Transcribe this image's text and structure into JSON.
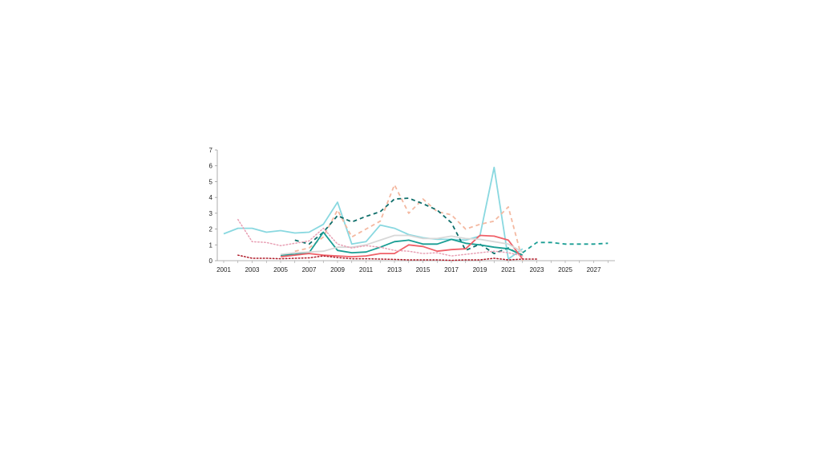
{
  "chart_data": {
    "type": "line",
    "title": "",
    "xlabel": "",
    "ylabel": "",
    "xlim": [
      2001,
      2028
    ],
    "ylim": [
      0,
      7
    ],
    "grid": false,
    "legend": "none",
    "x_ticks": [
      "2001",
      "2003",
      "2005",
      "2007",
      "2009",
      "2011",
      "2013",
      "2015",
      "2017",
      "2019",
      "2021",
      "2023",
      "2025",
      "2027"
    ],
    "y_ticks": [
      "0",
      "1",
      "2",
      "3",
      "4",
      "5",
      "6",
      "7"
    ],
    "series": [
      {
        "color": "#89d8e0",
        "style": "solid",
        "x": [
          2001,
          2002,
          2003,
          2004,
          2005,
          2006,
          2007,
          2008,
          2009,
          2010,
          2011,
          2012,
          2013,
          2014,
          2015,
          2016,
          2017,
          2018,
          2019,
          2020,
          2021,
          2022
        ],
        "y": [
          1.7,
          2.05,
          2.05,
          1.8,
          1.9,
          1.75,
          1.8,
          2.3,
          3.7,
          1.05,
          1.2,
          2.25,
          2.05,
          1.65,
          1.45,
          1.35,
          1.35,
          1.3,
          1.55,
          5.9,
          0.1,
          0.75
        ]
      },
      {
        "color": "#f4b8a0",
        "style": "dashed",
        "x": [
          2006,
          2007,
          2008,
          2009,
          2010,
          2011,
          2012,
          2013,
          2014,
          2015,
          2016,
          2017,
          2018,
          2019,
          2020,
          2021,
          2022
        ],
        "y": [
          0.6,
          0.8,
          1.5,
          3.2,
          1.5,
          2.0,
          2.5,
          4.8,
          3.0,
          3.9,
          3.1,
          2.9,
          2.0,
          2.3,
          2.5,
          3.4,
          0.0
        ]
      },
      {
        "color": "#0e6e6a",
        "style": "dashed",
        "x": [
          2006,
          2007,
          2008,
          2009,
          2010,
          2011,
          2012,
          2013,
          2014,
          2015,
          2016,
          2017,
          2018,
          2019,
          2020,
          2021,
          2022
        ],
        "y": [
          1.3,
          1.05,
          1.8,
          2.85,
          2.45,
          2.8,
          3.1,
          3.9,
          3.95,
          3.6,
          3.2,
          2.4,
          0.65,
          1.05,
          0.45,
          0.8,
          0.3
        ]
      },
      {
        "color": "#1a9e94",
        "style": "solid",
        "x": [
          2005,
          2006,
          2007,
          2008,
          2009,
          2010,
          2011,
          2012,
          2013,
          2014,
          2015,
          2016,
          2017,
          2018,
          2019,
          2020,
          2021,
          2022
        ],
        "y": [
          0.35,
          0.4,
          0.5,
          1.8,
          0.65,
          0.5,
          0.55,
          0.85,
          1.2,
          1.3,
          1.05,
          1.05,
          1.35,
          1.1,
          1.0,
          0.85,
          0.75,
          0.35
        ]
      },
      {
        "color": "#f06068",
        "style": "solid",
        "x": [
          2005,
          2006,
          2007,
          2008,
          2009,
          2010,
          2011,
          2012,
          2013,
          2014,
          2015,
          2016,
          2017,
          2018,
          2019,
          2020,
          2021,
          2022
        ],
        "y": [
          0.25,
          0.35,
          0.45,
          0.35,
          0.3,
          0.25,
          0.3,
          0.45,
          0.45,
          1.0,
          0.9,
          0.6,
          0.7,
          0.75,
          1.6,
          1.55,
          1.3,
          0.1
        ]
      },
      {
        "color": "#d8d8d8",
        "style": "solid",
        "x": [
          2005,
          2006,
          2007,
          2008,
          2009,
          2010,
          2011,
          2012,
          2013,
          2014,
          2015,
          2016,
          2017,
          2018,
          2019,
          2020,
          2021,
          2022
        ],
        "y": [
          0.4,
          0.5,
          0.55,
          0.6,
          0.85,
          0.85,
          1.0,
          1.3,
          1.6,
          1.6,
          1.4,
          1.4,
          1.55,
          1.4,
          1.35,
          1.2,
          1.05,
          0.55
        ]
      },
      {
        "color": "#e8a0b4",
        "style": "dotted",
        "x": [
          2002,
          2003,
          2004,
          2005,
          2006,
          2007,
          2008,
          2009,
          2010,
          2011,
          2012,
          2013,
          2014,
          2015,
          2016,
          2017,
          2018,
          2019,
          2020,
          2021,
          2022
        ],
        "y": [
          2.6,
          1.2,
          1.15,
          0.95,
          1.1,
          1.25,
          2.05,
          1.05,
          0.8,
          0.95,
          0.85,
          0.65,
          0.6,
          0.45,
          0.5,
          0.3,
          0.4,
          0.5,
          0.6,
          0.5,
          0.3
        ]
      },
      {
        "color": "#b01c2a",
        "style": "dotted",
        "x": [
          2002,
          2003,
          2004,
          2005,
          2006,
          2007,
          2008,
          2009,
          2010,
          2011,
          2012,
          2013,
          2014,
          2015,
          2016,
          2017,
          2018,
          2019,
          2020,
          2021,
          2022,
          2023
        ],
        "y": [
          0.35,
          0.15,
          0.15,
          0.12,
          0.15,
          0.18,
          0.3,
          0.2,
          0.12,
          0.12,
          0.1,
          0.08,
          0.05,
          0.05,
          0.05,
          0.02,
          0.05,
          0.05,
          0.15,
          0.05,
          0.1,
          0.1
        ]
      },
      {
        "color": "#1a9e94",
        "style": "dashed",
        "x": [
          2022,
          2023,
          2024,
          2025,
          2026,
          2027,
          2028
        ],
        "y": [
          0.5,
          1.15,
          1.15,
          1.05,
          1.05,
          1.05,
          1.1
        ]
      }
    ]
  }
}
